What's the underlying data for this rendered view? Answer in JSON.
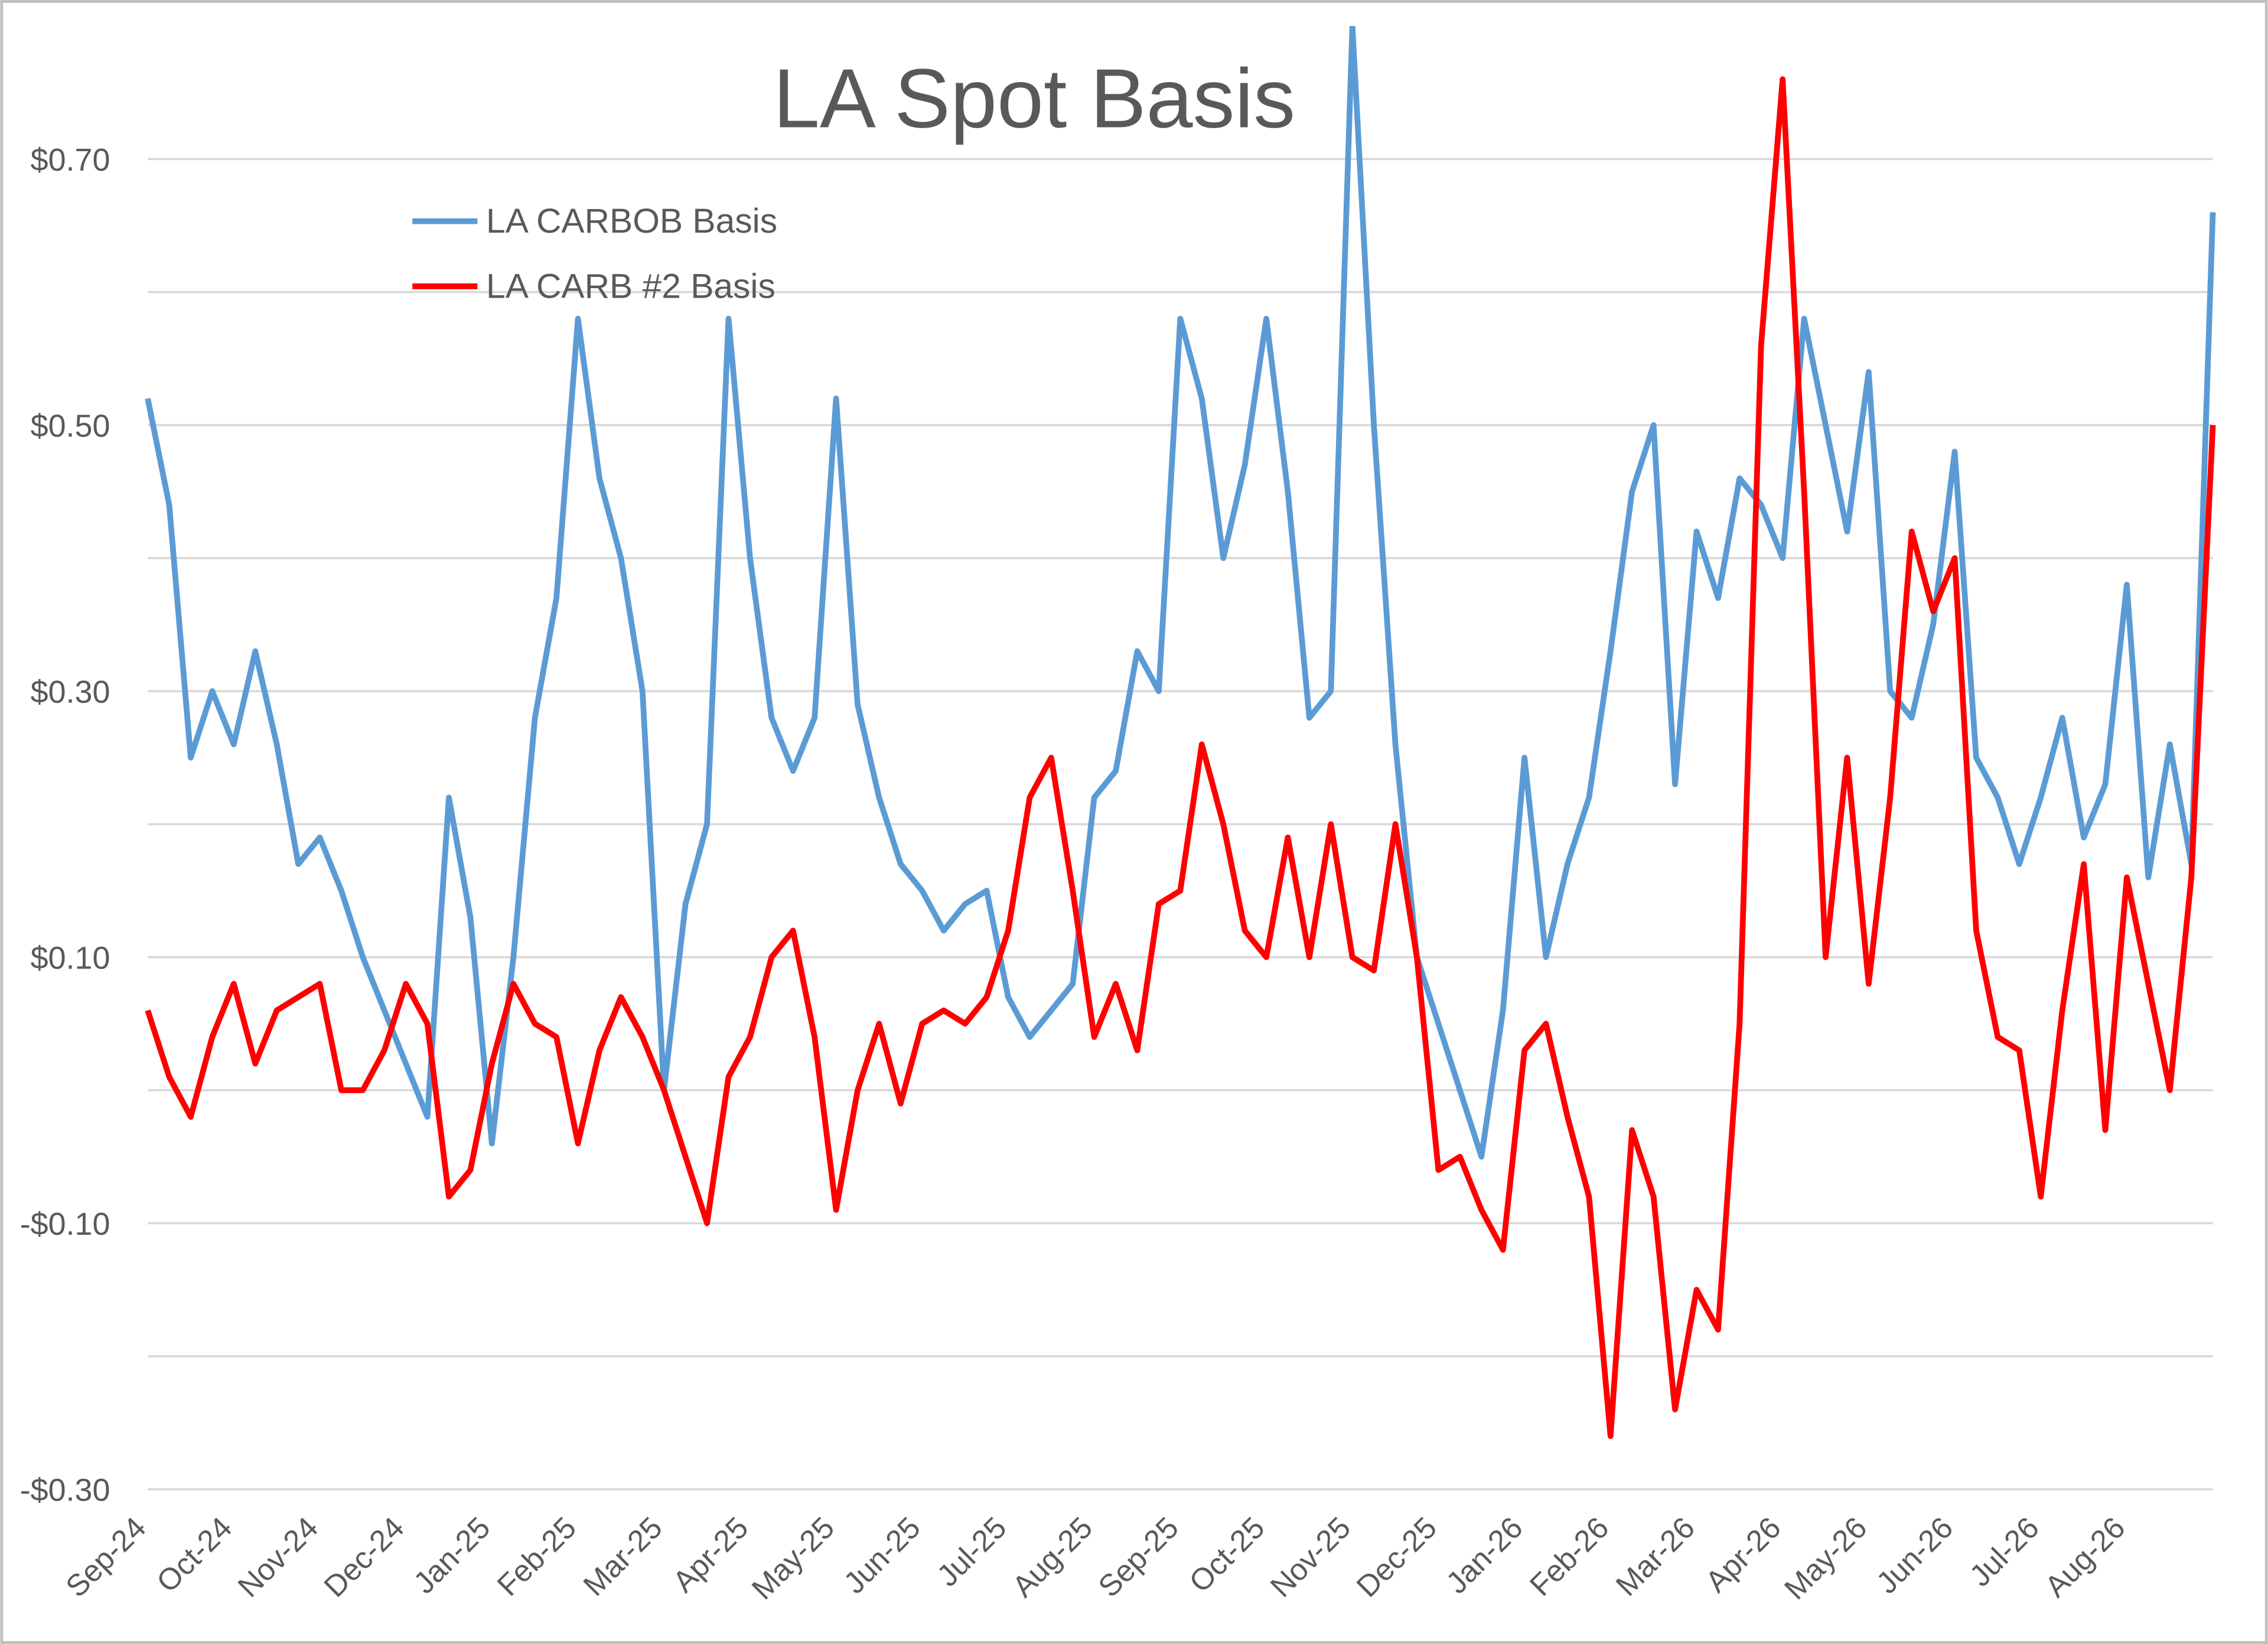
{
  "chart_data": {
    "type": "line",
    "title": "LA Spot Basis",
    "categories": [
      "Sep-24",
      null,
      null,
      null,
      "Oct-24",
      null,
      null,
      null,
      "Nov-24",
      null,
      null,
      null,
      "Dec-24",
      null,
      null,
      null,
      "Jan-25",
      null,
      null,
      null,
      "Feb-25",
      null,
      null,
      null,
      "Mar-25",
      null,
      null,
      null,
      "Apr-25",
      null,
      null,
      null,
      "May-25",
      null,
      null,
      null,
      "Jun-25",
      null,
      null,
      null,
      "Jul-25",
      null,
      null,
      null,
      "Aug-25",
      null,
      null,
      null,
      "Sep-25",
      null,
      null,
      null,
      "Oct-25",
      null,
      null,
      null,
      "Nov-25",
      null,
      null,
      null,
      "Dec-25",
      null,
      null,
      null,
      "Jan-26",
      null,
      null,
      null,
      "Feb-26",
      null,
      null,
      null,
      "Mar-26",
      null,
      null,
      null,
      "Apr-26",
      null,
      null,
      null,
      "May-26",
      null,
      null,
      null,
      "Jun-26",
      null,
      null,
      null,
      "Jul-26",
      null,
      null,
      null,
      "Aug-26",
      null,
      null,
      null,
      null
    ],
    "series": [
      {
        "name": "LA CARBOB Basis",
        "color": "#5b9bd5",
        "values": [
          0.52,
          0.44,
          0.25,
          0.3,
          0.26,
          0.33,
          0.26,
          0.17,
          0.19,
          0.15,
          0.1,
          0.06,
          0.02,
          -0.02,
          0.22,
          0.13,
          -0.04,
          0.1,
          0.28,
          0.37,
          0.58,
          0.46,
          0.4,
          0.3,
          0.0,
          0.14,
          0.2,
          0.58,
          0.4,
          0.28,
          0.24,
          0.28,
          0.52,
          0.29,
          0.22,
          0.17,
          0.15,
          0.12,
          0.14,
          0.15,
          0.07,
          0.04,
          0.06,
          0.08,
          0.22,
          0.24,
          0.33,
          0.3,
          0.58,
          0.52,
          0.4,
          0.47,
          0.58,
          0.45,
          0.28,
          0.3,
          0.8,
          0.5,
          0.26,
          0.1,
          0.05,
          0.0,
          -0.05,
          0.06,
          0.25,
          0.1,
          0.17,
          0.22,
          0.33,
          0.45,
          0.5,
          0.23,
          0.42,
          0.37,
          0.46,
          0.44,
          0.4,
          0.58,
          0.5,
          0.42,
          0.54,
          0.3,
          0.28,
          0.35,
          0.48,
          0.25,
          0.22,
          0.17,
          0.22,
          0.28,
          0.19,
          0.23,
          0.38,
          0.16,
          0.26,
          0.17,
          0.66
        ]
      },
      {
        "name": "LA CARB #2 Basis",
        "color": "#ff0000",
        "values": [
          0.06,
          0.01,
          -0.02,
          0.04,
          0.08,
          0.02,
          0.06,
          0.07,
          0.08,
          0.0,
          0.0,
          0.03,
          0.08,
          0.05,
          -0.08,
          -0.06,
          0.02,
          0.08,
          0.05,
          0.04,
          -0.04,
          0.03,
          0.07,
          0.04,
          0.0,
          -0.05,
          -0.1,
          0.01,
          0.04,
          0.1,
          0.12,
          0.04,
          -0.09,
          0.0,
          0.05,
          -0.01,
          0.05,
          0.06,
          0.05,
          0.07,
          0.12,
          0.22,
          0.25,
          0.15,
          0.04,
          0.08,
          0.03,
          0.14,
          0.15,
          0.26,
          0.2,
          0.12,
          0.1,
          0.19,
          0.1,
          0.2,
          0.1,
          0.09,
          0.2,
          0.1,
          -0.06,
          -0.05,
          -0.09,
          -0.12,
          0.03,
          0.05,
          -0.02,
          -0.08,
          -0.26,
          -0.03,
          -0.08,
          -0.24,
          -0.15,
          -0.18,
          0.05,
          0.56,
          0.76,
          0.45,
          0.1,
          0.25,
          0.08,
          0.22,
          0.42,
          0.36,
          0.4,
          0.12,
          0.04,
          0.03,
          -0.08,
          0.06,
          0.17,
          -0.03,
          0.16,
          0.08,
          0.0,
          0.16,
          0.5
        ]
      }
    ],
    "ylim": [
      -0.3,
      0.8
    ],
    "yticks": [
      {
        "value": -0.3,
        "label": "-$0.30"
      },
      {
        "value": -0.1,
        "label": "-$0.10"
      },
      {
        "value": 0.1,
        "label": "$0.10"
      },
      {
        "value": 0.3,
        "label": "$0.30"
      },
      {
        "value": 0.5,
        "label": "$0.50"
      },
      {
        "value": 0.7,
        "label": "$0.70"
      }
    ],
    "minor_yticks": [
      -0.2,
      0,
      0.2,
      0.4,
      0.6
    ],
    "grid": true
  }
}
